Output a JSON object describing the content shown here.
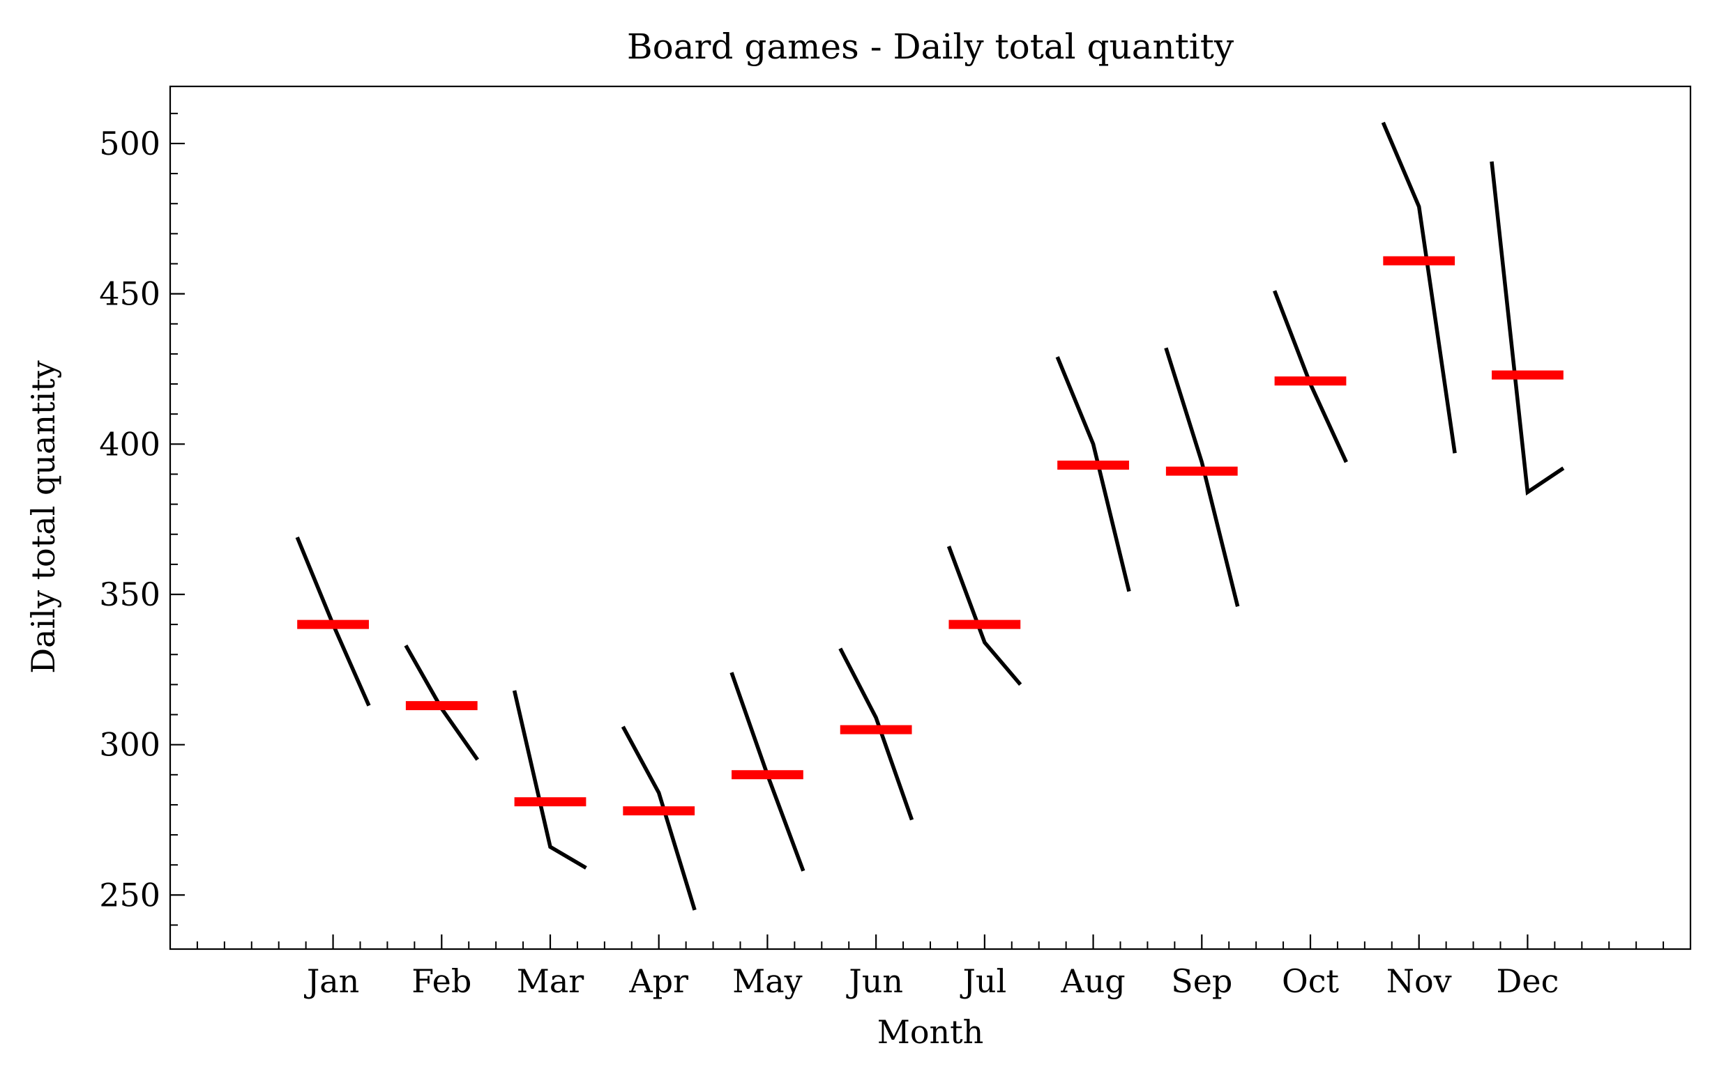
{
  "chart_data": {
    "type": "line",
    "title": "Board games - Daily total quantity",
    "xlabel": "Month",
    "ylabel": "Daily total quantity",
    "categories": [
      "Jan",
      "Feb",
      "Mar",
      "Apr",
      "May",
      "Jun",
      "Jul",
      "Aug",
      "Sep",
      "Oct",
      "Nov",
      "Dec"
    ],
    "ylim": [
      232,
      519
    ],
    "yticks": [
      250,
      300,
      350,
      400,
      450,
      500
    ],
    "yminor_step": 10,
    "xlim": [
      -1.5,
      12.5
    ],
    "xminor_step": 0.25,
    "grid": false,
    "series": [
      {
        "values": [
          [
            369,
            340,
            313
          ],
          [
            333,
            312,
            295
          ],
          [
            318,
            266,
            259
          ],
          [
            306,
            284,
            245
          ],
          [
            324,
            290,
            258
          ],
          [
            332,
            309,
            275
          ],
          [
            366,
            334,
            320
          ],
          [
            429,
            400,
            351
          ],
          [
            432,
            394,
            346
          ],
          [
            451,
            420,
            394
          ],
          [
            507,
            479,
            397
          ],
          [
            494,
            384,
            392
          ]
        ]
      }
    ],
    "means": [
      340,
      313,
      281,
      278,
      290,
      305,
      340,
      393,
      391,
      421,
      461,
      423
    ],
    "colors": {
      "line": "#000000",
      "mean": "#ff0000",
      "axes": "#000000",
      "background": "#ffffff"
    }
  }
}
